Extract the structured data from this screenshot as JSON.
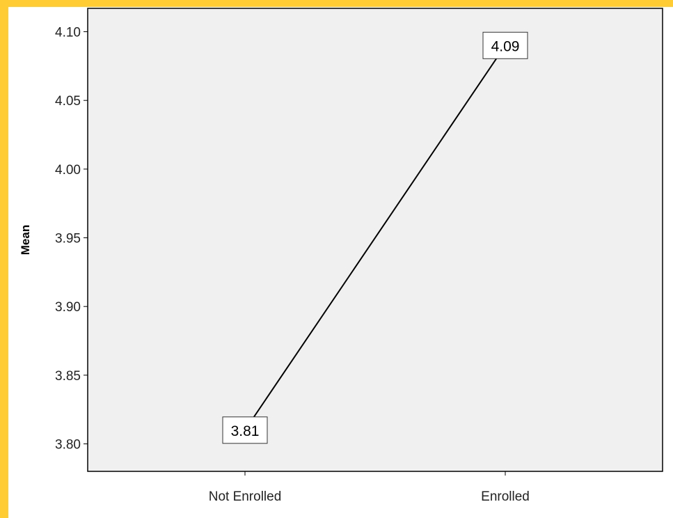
{
  "chart_data": {
    "type": "line",
    "categories": [
      "Not Enrolled",
      "Enrolled"
    ],
    "series": [
      {
        "values": [
          3.81,
          4.09
        ],
        "data_labels": [
          "3.81",
          "4.09"
        ]
      }
    ],
    "title": "",
    "xlabel": "",
    "ylabel": "Mean",
    "ylim": [
      3.78,
      4.117
    ],
    "yticks": [
      3.8,
      3.85,
      3.9,
      3.95,
      4.0,
      4.05,
      4.1
    ],
    "ytick_labels": [
      "3.80",
      "3.85",
      "3.90",
      "3.95",
      "4.00",
      "4.05",
      "4.10"
    ],
    "grid": false,
    "legend": "none"
  },
  "colors": {
    "frame": "#ffcc33",
    "plot_background": "#f0f0f0",
    "line": "#000000",
    "axis": "#000000"
  }
}
